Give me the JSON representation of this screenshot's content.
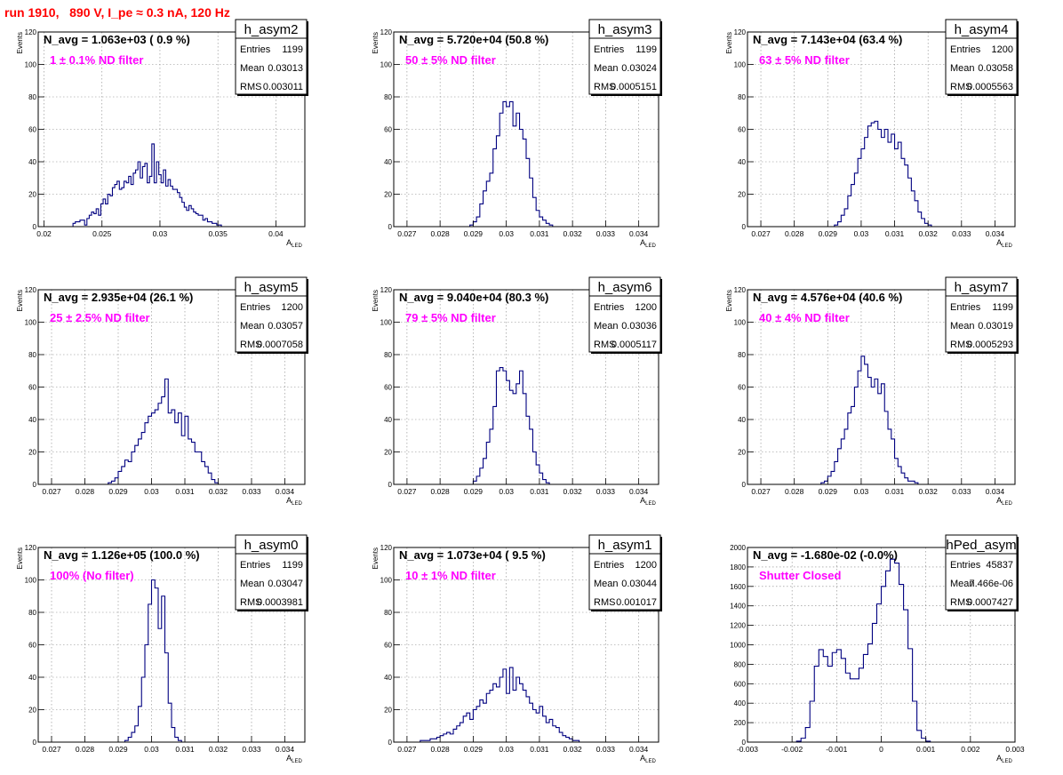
{
  "page": {
    "title": "run 1910,   890 V, I_pe ≈ 0.3 nA, 120 Hz"
  },
  "stats_labels": {
    "entries": "Entries",
    "mean": "Mean",
    "rms": "RMS"
  },
  "colors": {
    "title": "#ff0000",
    "annotation": "#ff00ff",
    "histogram": "#000080",
    "grid": "#888888"
  },
  "chart_data": [
    {
      "type": "histogram",
      "name": "h_asym2",
      "navg": "N_avg = 1.063e+03 ( 0.9 %)",
      "filter": "1 ± 0.1% ND filter",
      "stats": {
        "entries": "1199",
        "mean": "0.03013",
        "rms": "0.003011"
      },
      "xlabel": "A",
      "xlabel_sub": "LED",
      "ylabel": "Events",
      "xlim": [
        0.0195,
        0.0425
      ],
      "ylim": [
        0,
        120
      ],
      "xticks": [
        0.02,
        0.025,
        0.03,
        0.035,
        0.04
      ],
      "xticklabels": [
        "0.02",
        "0.025",
        "0.03",
        "0.035",
        "0.04"
      ],
      "yticks": [
        0,
        20,
        40,
        60,
        80,
        100,
        120
      ],
      "yticklabels": [
        "0",
        "20",
        "40",
        "60",
        "80",
        "100",
        "120"
      ],
      "bins": {
        "x0": 0.0225,
        "width": 0.0002,
        "values": [
          2,
          3,
          3,
          4,
          4,
          1,
          5,
          7,
          9,
          8,
          11,
          7,
          14,
          17,
          14,
          20,
          19,
          24,
          26,
          28,
          23,
          24,
          28,
          27,
          31,
          26,
          33,
          35,
          40,
          30,
          37,
          39,
          27,
          31,
          51,
          27,
          40,
          32,
          27,
          35,
          25,
          29,
          25,
          23,
          23,
          21,
          18,
          15,
          12,
          10,
          13,
          11,
          9,
          8,
          7,
          7,
          4,
          5,
          3,
          3,
          2,
          2,
          1,
          1
        ]
      }
    },
    {
      "type": "histogram",
      "name": "h_asym3",
      "navg": "N_avg = 5.720e+04 (50.8 %)",
      "filter": "50 ± 5% ND filter",
      "stats": {
        "entries": "1199",
        "mean": "0.03024",
        "rms": "0.0005151"
      },
      "xlabel": "A",
      "xlabel_sub": "LED",
      "ylabel": "Events",
      "xlim": [
        0.0266,
        0.0346
      ],
      "ylim": [
        0,
        120
      ],
      "xticks": [
        0.027,
        0.028,
        0.029,
        0.03,
        0.031,
        0.032,
        0.033,
        0.034
      ],
      "xticklabels": [
        "0.027",
        "0.028",
        "0.029",
        "0.03",
        "0.031",
        "0.032",
        "0.033",
        "0.034"
      ],
      "yticks": [
        0,
        20,
        40,
        60,
        80,
        100,
        120
      ],
      "yticklabels": [
        "0",
        "20",
        "40",
        "60",
        "80",
        "100",
        "120"
      ],
      "bins": {
        "x0": 0.0289,
        "width": 0.0001,
        "values": [
          1,
          3,
          6,
          14,
          22,
          28,
          33,
          48,
          56,
          70,
          77,
          74,
          77,
          62,
          70,
          60,
          54,
          42,
          30,
          18,
          10,
          6,
          4,
          2,
          1
        ]
      }
    },
    {
      "type": "histogram",
      "name": "h_asym4",
      "navg": "N_avg = 7.143e+04 (63.4 %)",
      "filter": "63 ± 5% ND filter",
      "stats": {
        "entries": "1200",
        "mean": "0.03058",
        "rms": "0.0005563"
      },
      "xlabel": "A",
      "xlabel_sub": "LED",
      "ylabel": "Events",
      "xlim": [
        0.0266,
        0.0346
      ],
      "ylim": [
        0,
        120
      ],
      "xticks": [
        0.027,
        0.028,
        0.029,
        0.03,
        0.031,
        0.032,
        0.033,
        0.034
      ],
      "xticklabels": [
        "0.027",
        "0.028",
        "0.029",
        "0.03",
        "0.031",
        "0.032",
        "0.033",
        "0.034"
      ],
      "yticks": [
        0,
        20,
        40,
        60,
        80,
        100,
        120
      ],
      "yticklabels": [
        "0",
        "20",
        "40",
        "60",
        "80",
        "100",
        "120"
      ],
      "bins": {
        "x0": 0.0292,
        "width": 0.0001,
        "values": [
          1,
          3,
          7,
          11,
          19,
          26,
          33,
          42,
          48,
          55,
          62,
          64,
          65,
          60,
          55,
          60,
          52,
          57,
          48,
          52,
          42,
          38,
          30,
          22,
          16,
          9,
          5,
          2,
          1
        ]
      }
    },
    {
      "type": "histogram",
      "name": "h_asym5",
      "navg": "N_avg = 2.935e+04 (26.1 %)",
      "filter": "25 ± 2.5% ND filter",
      "stats": {
        "entries": "1200",
        "mean": "0.03057",
        "rms": "0.0007058"
      },
      "xlabel": "A",
      "xlabel_sub": "LED",
      "ylabel": "Events",
      "xlim": [
        0.0266,
        0.0346
      ],
      "ylim": [
        0,
        120
      ],
      "xticks": [
        0.027,
        0.028,
        0.029,
        0.03,
        0.031,
        0.032,
        0.033,
        0.034
      ],
      "xticklabels": [
        "0.027",
        "0.028",
        "0.029",
        "0.03",
        "0.031",
        "0.032",
        "0.033",
        "0.034"
      ],
      "yticks": [
        0,
        20,
        40,
        60,
        80,
        100,
        120
      ],
      "yticklabels": [
        "0",
        "20",
        "40",
        "60",
        "80",
        "100",
        "120"
      ],
      "bins": {
        "x0": 0.0287,
        "width": 0.0001,
        "values": [
          1,
          2,
          4,
          8,
          11,
          15,
          14,
          20,
          24,
          28,
          32,
          38,
          42,
          44,
          46,
          50,
          54,
          65,
          44,
          46,
          38,
          44,
          30,
          42,
          28,
          26,
          20,
          20,
          14,
          11,
          7,
          3,
          1
        ]
      }
    },
    {
      "type": "histogram",
      "name": "h_asym6",
      "navg": "N_avg = 9.040e+04 (80.3 %)",
      "filter": "79 ± 5% ND filter",
      "stats": {
        "entries": "1200",
        "mean": "0.03036",
        "rms": "0.0005117"
      },
      "xlabel": "A",
      "xlabel_sub": "LED",
      "ylabel": "Events",
      "xlim": [
        0.0266,
        0.0346
      ],
      "ylim": [
        0,
        120
      ],
      "xticks": [
        0.027,
        0.028,
        0.029,
        0.03,
        0.031,
        0.032,
        0.033,
        0.034
      ],
      "xticklabels": [
        "0.027",
        "0.028",
        "0.029",
        "0.03",
        "0.031",
        "0.032",
        "0.033",
        "0.034"
      ],
      "yticks": [
        0,
        20,
        40,
        60,
        80,
        100,
        120
      ],
      "yticklabels": [
        "0",
        "20",
        "40",
        "60",
        "80",
        "100",
        "120"
      ],
      "bins": {
        "x0": 0.029,
        "width": 0.0001,
        "values": [
          2,
          5,
          10,
          16,
          26,
          34,
          48,
          70,
          72,
          70,
          64,
          58,
          56,
          62,
          70,
          56,
          42,
          34,
          20,
          12,
          7,
          3,
          1
        ]
      }
    },
    {
      "type": "histogram",
      "name": "h_asym7",
      "navg": "N_avg = 4.576e+04 (40.6 %)",
      "filter": "40 ± 4% ND filter",
      "stats": {
        "entries": "1199",
        "mean": "0.03019",
        "rms": "0.0005293"
      },
      "xlabel": "A",
      "xlabel_sub": "LED",
      "ylabel": "Events",
      "xlim": [
        0.0266,
        0.0346
      ],
      "ylim": [
        0,
        120
      ],
      "xticks": [
        0.027,
        0.028,
        0.029,
        0.03,
        0.031,
        0.032,
        0.033,
        0.034
      ],
      "xticklabels": [
        "0.027",
        "0.028",
        "0.029",
        "0.03",
        "0.031",
        "0.032",
        "0.033",
        "0.034"
      ],
      "yticks": [
        0,
        20,
        40,
        60,
        80,
        100,
        120
      ],
      "yticklabels": [
        "0",
        "20",
        "40",
        "60",
        "80",
        "100",
        "120"
      ],
      "bins": {
        "x0": 0.0288,
        "width": 0.0001,
        "values": [
          1,
          2,
          5,
          8,
          14,
          22,
          28,
          34,
          44,
          48,
          60,
          70,
          79,
          74,
          66,
          60,
          65,
          56,
          62,
          45,
          34,
          28,
          16,
          11,
          7,
          4,
          2,
          2,
          1
        ]
      }
    },
    {
      "type": "histogram",
      "name": "h_asym0",
      "navg": "N_avg = 1.126e+05 (100.0 %)",
      "filter": "100% (No filter)",
      "stats": {
        "entries": "1199",
        "mean": "0.03047",
        "rms": "0.0003981"
      },
      "xlabel": "A",
      "xlabel_sub": "LED",
      "ylabel": "Events",
      "xlim": [
        0.0266,
        0.0346
      ],
      "ylim": [
        0,
        120
      ],
      "xticks": [
        0.027,
        0.028,
        0.029,
        0.03,
        0.031,
        0.032,
        0.033,
        0.034
      ],
      "xticklabels": [
        "0.027",
        "0.028",
        "0.029",
        "0.03",
        "0.031",
        "0.032",
        "0.033",
        "0.034"
      ],
      "yticks": [
        0,
        20,
        40,
        60,
        80,
        100,
        120
      ],
      "yticklabels": [
        "0",
        "20",
        "40",
        "60",
        "80",
        "100",
        "120"
      ],
      "bins": {
        "x0": 0.0292,
        "width": 0.0001,
        "values": [
          1,
          3,
          6,
          10,
          22,
          40,
          60,
          85,
          100,
          95,
          70,
          90,
          55,
          24,
          9,
          3,
          1
        ]
      }
    },
    {
      "type": "histogram",
      "name": "h_asym1",
      "navg": "N_avg = 1.073e+04 ( 9.5 %)",
      "filter": "10 ± 1% ND filter",
      "stats": {
        "entries": "1200",
        "mean": "0.03044",
        "rms": "0.001017"
      },
      "xlabel": "A",
      "xlabel_sub": "LED",
      "ylabel": "Events",
      "xlim": [
        0.0266,
        0.0346
      ],
      "ylim": [
        0,
        120
      ],
      "xticks": [
        0.027,
        0.028,
        0.029,
        0.03,
        0.031,
        0.032,
        0.033,
        0.034
      ],
      "xticklabels": [
        "0.027",
        "0.028",
        "0.029",
        "0.03",
        "0.031",
        "0.032",
        "0.033",
        "0.034"
      ],
      "yticks": [
        0,
        20,
        40,
        60,
        80,
        100,
        120
      ],
      "yticklabels": [
        "0",
        "20",
        "40",
        "60",
        "80",
        "100",
        "120"
      ],
      "bins": {
        "x0": 0.0274,
        "width": 0.0001,
        "values": [
          1,
          1,
          1,
          2,
          2,
          3,
          4,
          5,
          6,
          5,
          8,
          10,
          12,
          16,
          18,
          14,
          20,
          22,
          26,
          24,
          30,
          32,
          36,
          34,
          40,
          45,
          30,
          46,
          32,
          40,
          36,
          32,
          28,
          24,
          20,
          18,
          22,
          16,
          12,
          14,
          10,
          9,
          6,
          4,
          3,
          2,
          1,
          1
        ]
      }
    },
    {
      "type": "histogram",
      "name": "hPed_asym",
      "navg": "N_avg = -1.680e-02 (-0.0%)",
      "filter": "Shutter Closed",
      "stats": {
        "entries": "45837",
        "mean": "7.466e-06",
        "rms": "0.0007427"
      },
      "xlabel": "A",
      "xlabel_sub": "LED",
      "ylabel": "",
      "xlim": [
        -0.003,
        0.003
      ],
      "ylim": [
        0,
        2000
      ],
      "xticks": [
        -0.003,
        -0.002,
        -0.001,
        0,
        0.001,
        0.002,
        0.003
      ],
      "xticklabels": [
        "-0.003",
        "-0.002",
        "-0.001",
        "0",
        "0.001",
        "0.002",
        "0.003"
      ],
      "yticks": [
        0,
        200,
        400,
        600,
        800,
        1000,
        1200,
        1400,
        1600,
        1800,
        2000
      ],
      "yticklabels": [
        "0",
        "200",
        "400",
        "600",
        "800",
        "1000",
        "1200",
        "1400",
        "1600",
        "1800",
        "2000"
      ],
      "bins": {
        "x0": -0.0019,
        "width": 0.0001,
        "values": [
          10,
          40,
          150,
          420,
          780,
          950,
          880,
          780,
          920,
          950,
          860,
          710,
          650,
          650,
          760,
          900,
          1010,
          1220,
          1420,
          1600,
          1760,
          1880,
          1840,
          1620,
          1360,
          960,
          420,
          120,
          40,
          10
        ]
      }
    }
  ]
}
